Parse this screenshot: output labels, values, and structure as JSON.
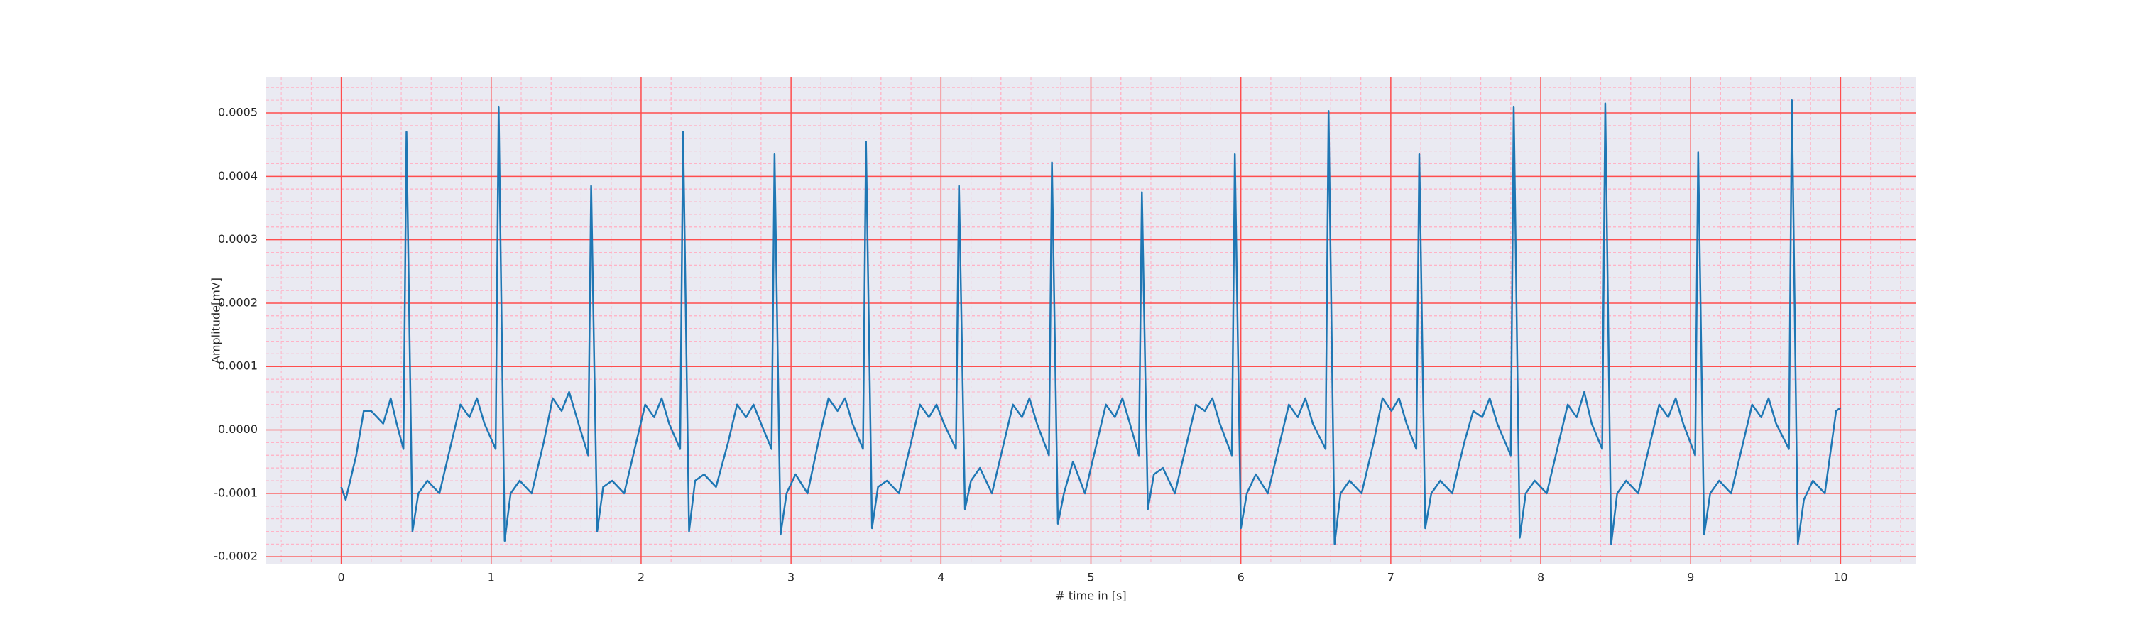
{
  "chart_data": {
    "type": "line",
    "xlabel": "# time in [s]",
    "ylabel": "Amplitude[mV]",
    "xlim": [
      -0.5,
      10.5
    ],
    "ylim": [
      -0.000211,
      0.000556
    ],
    "xticks": [
      0,
      1,
      2,
      3,
      4,
      5,
      6,
      7,
      8,
      9,
      10
    ],
    "yticks": [
      -0.0002,
      -0.0001,
      {
        "value": 0,
        "label": "0.0000"
      },
      0.0001,
      0.0002,
      0.0003,
      0.0004,
      0.0005
    ],
    "grid": true,
    "minor_grid": true,
    "background": "#eaeaf2",
    "grid_color": "#ff4d4d",
    "minor_grid_color": "#ffb3c6",
    "color": "#1f77b4",
    "x": [
      0,
      0.03,
      0.1,
      0.15,
      0.2,
      0.28,
      0.33,
      0.37,
      0.415,
      0.435,
      0.475,
      0.515,
      0.575,
      0.655,
      0.735,
      0.795,
      0.855,
      0.905,
      0.955,
      1.03,
      1.05,
      1.09,
      1.13,
      1.19,
      1.27,
      1.35,
      1.41,
      1.47,
      1.52,
      1.57,
      1.647,
      1.667,
      1.707,
      1.747,
      1.807,
      1.887,
      1.967,
      2.027,
      2.087,
      2.137,
      2.187,
      2.26,
      2.28,
      2.32,
      2.36,
      2.42,
      2.5,
      2.58,
      2.64,
      2.7,
      2.75,
      2.8,
      2.87,
      2.89,
      2.93,
      2.97,
      3.03,
      3.11,
      3.19,
      3.25,
      3.31,
      3.36,
      3.41,
      3.48,
      3.5,
      3.54,
      3.58,
      3.64,
      3.72,
      3.8,
      3.86,
      3.92,
      3.97,
      4.02,
      4.1,
      4.12,
      4.16,
      4.2,
      4.26,
      4.34,
      4.42,
      4.48,
      4.54,
      4.59,
      4.64,
      4.72,
      4.74,
      4.78,
      4.82,
      4.88,
      4.96,
      5.04,
      5.1,
      5.16,
      5.21,
      5.26,
      5.32,
      5.34,
      5.38,
      5.42,
      5.48,
      5.56,
      5.64,
      5.7,
      5.76,
      5.81,
      5.86,
      5.94,
      5.96,
      6.0,
      6.04,
      6.1,
      6.18,
      6.26,
      6.32,
      6.38,
      6.43,
      6.48,
      6.565,
      6.585,
      6.625,
      6.665,
      6.725,
      6.805,
      6.885,
      6.945,
      7.005,
      7.055,
      7.105,
      7.17,
      7.19,
      7.23,
      7.27,
      7.33,
      7.41,
      7.49,
      7.55,
      7.61,
      7.66,
      7.71,
      7.8,
      7.82,
      7.86,
      7.9,
      7.96,
      8.04,
      8.12,
      8.18,
      8.24,
      8.29,
      8.34,
      8.41,
      8.43,
      8.47,
      8.51,
      8.57,
      8.65,
      8.73,
      8.79,
      8.85,
      8.9,
      8.95,
      9.03,
      9.05,
      9.09,
      9.13,
      9.19,
      9.27,
      9.35,
      9.41,
      9.47,
      9.52,
      9.57,
      9.655,
      9.675,
      9.715,
      9.755,
      9.815,
      9.895,
      9.97,
      10.0
    ],
    "values": [
      -9e-05,
      -0.00011,
      -4e-05,
      3e-05,
      3e-05,
      1e-05,
      5e-05,
      1e-05,
      -3e-05,
      0.00047,
      -0.00016,
      -0.0001,
      -8e-05,
      -0.0001,
      -2e-05,
      4e-05,
      2e-05,
      5e-05,
      1e-05,
      -3e-05,
      0.00051,
      -0.000175,
      -0.0001,
      -8e-05,
      -0.0001,
      -2e-05,
      5e-05,
      3e-05,
      6e-05,
      2e-05,
      -4e-05,
      0.000385,
      -0.00016,
      -9e-05,
      -8e-05,
      -0.0001,
      -2e-05,
      4e-05,
      2e-05,
      5e-05,
      1e-05,
      -3e-05,
      0.00047,
      -0.00016,
      -8e-05,
      -7e-05,
      -9e-05,
      -2e-05,
      4e-05,
      2e-05,
      4e-05,
      1e-05,
      -3e-05,
      0.000435,
      -0.000165,
      -0.0001,
      -7e-05,
      -0.0001,
      -1e-05,
      5e-05,
      3e-05,
      5e-05,
      1e-05,
      -3e-05,
      0.000455,
      -0.000155,
      -9e-05,
      -8e-05,
      -0.0001,
      -2e-05,
      4e-05,
      2e-05,
      4e-05,
      1e-05,
      -3e-05,
      0.000385,
      -0.000125,
      -8e-05,
      -6e-05,
      -0.0001,
      -2e-05,
      4e-05,
      2e-05,
      5e-05,
      1e-05,
      -4e-05,
      0.000422,
      -0.000148,
      -0.0001,
      -5e-05,
      -0.0001,
      -2e-05,
      4e-05,
      2e-05,
      5e-05,
      1e-05,
      -4e-05,
      0.000375,
      -0.000125,
      -7e-05,
      -6e-05,
      -0.0001,
      -2e-05,
      4e-05,
      3e-05,
      5e-05,
      1e-05,
      -4e-05,
      0.000435,
      -0.000155,
      -0.0001,
      -7e-05,
      -0.0001,
      -2e-05,
      4e-05,
      2e-05,
      5e-05,
      1e-05,
      -3e-05,
      0.000503,
      -0.00018,
      -0.0001,
      -8e-05,
      -0.0001,
      -2e-05,
      5e-05,
      3e-05,
      5e-05,
      1e-05,
      -3e-05,
      0.000435,
      -0.000155,
      -0.0001,
      -8e-05,
      -0.0001,
      -2e-05,
      3e-05,
      2e-05,
      5e-05,
      1e-05,
      -4e-05,
      0.00051,
      -0.00017,
      -0.0001,
      -8e-05,
      -0.0001,
      -2e-05,
      4e-05,
      2e-05,
      6e-05,
      1e-05,
      -3e-05,
      0.000515,
      -0.00018,
      -0.0001,
      -8e-05,
      -0.0001,
      -2e-05,
      4e-05,
      2e-05,
      5e-05,
      1e-05,
      -4e-05,
      0.000438,
      -0.000165,
      -0.0001,
      -8e-05,
      -0.0001,
      -2e-05,
      4e-05,
      2e-05,
      5e-05,
      1e-05,
      -3e-05,
      0.00052,
      -0.00018,
      -0.00011,
      -8e-05,
      -0.0001,
      3e-05,
      3.5e-05
    ]
  }
}
